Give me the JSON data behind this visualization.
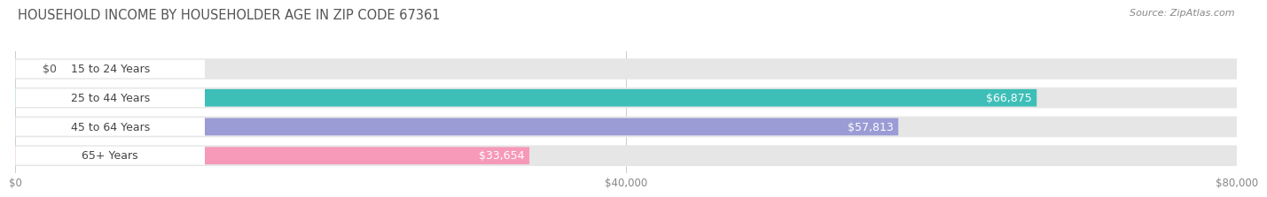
{
  "title": "HOUSEHOLD INCOME BY HOUSEHOLDER AGE IN ZIP CODE 67361",
  "source": "Source: ZipAtlas.com",
  "categories": [
    "15 to 24 Years",
    "25 to 44 Years",
    "45 to 64 Years",
    "65+ Years"
  ],
  "values": [
    0,
    66875,
    57813,
    33654
  ],
  "labels": [
    "$0",
    "$66,875",
    "$57,813",
    "$33,654"
  ],
  "bar_colors": [
    "#c9aed6",
    "#3dbfb8",
    "#9b9bd6",
    "#f799b8"
  ],
  "bg_color": "#ffffff",
  "bar_bg_color": "#e6e6e6",
  "xlim": [
    0,
    80000
  ],
  "xticks": [
    0,
    40000,
    80000
  ],
  "xticklabels": [
    "$0",
    "$40,000",
    "$80,000"
  ],
  "title_fontsize": 10.5,
  "label_fontsize": 9,
  "tick_fontsize": 8.5,
  "source_fontsize": 8,
  "title_color": "#555555",
  "source_color": "#888888",
  "tick_color": "#888888",
  "grid_color": "#cccccc",
  "label_box_color": "#ffffff",
  "cat_text_color": "#444444",
  "val_text_color_inside": "#ffffff",
  "val_text_color_outside": "#555555"
}
